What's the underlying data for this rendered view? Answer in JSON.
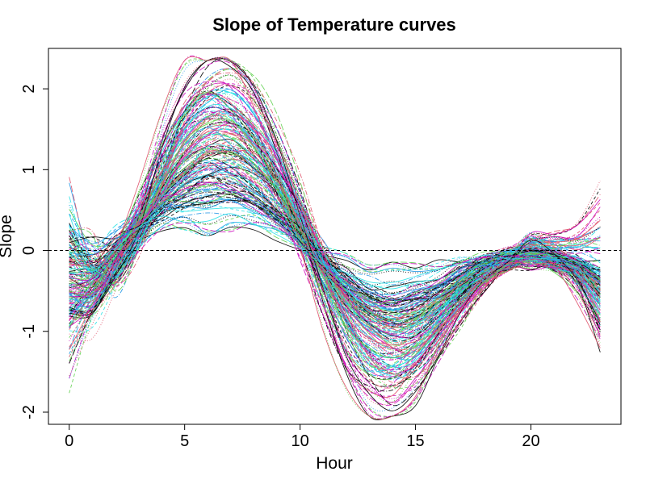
{
  "chart_data": {
    "type": "line",
    "title": "Slope of Temperature curves",
    "xlabel": "Hour",
    "ylabel": "Slope",
    "xlim": [
      -0.9,
      23.9
    ],
    "ylim": [
      -2.15,
      2.5
    ],
    "xticks": [
      0,
      5,
      10,
      15,
      20
    ],
    "xtick_labels": [
      "0",
      "5",
      "10",
      "15",
      "20"
    ],
    "yticks": [
      -2,
      -1,
      0,
      1,
      2
    ],
    "ytick_labels": [
      "-2",
      "-1",
      "0",
      "1",
      "2"
    ],
    "reference_line": {
      "y": 0,
      "style": "dashed",
      "color": "#000000"
    },
    "grid": false,
    "legend": "none",
    "curve_count": 200,
    "palette": [
      "#000000",
      "#DF536B",
      "#61D04F",
      "#2297E6",
      "#28E2E5",
      "#CD0BBC",
      "#F5C710",
      "#9E9E9E"
    ],
    "x": [
      0,
      1,
      2,
      3,
      4,
      5,
      6,
      7,
      8,
      9,
      10,
      11,
      12,
      13,
      14,
      15,
      16,
      17,
      18,
      19,
      20,
      21,
      22,
      23
    ],
    "representative_series": [
      {
        "values": [
          1.1,
          -0.1,
          -0.5,
          0.1,
          0.9,
          1.6,
          1.9,
          2.0,
          1.8,
          1.3,
          0.6,
          -0.2,
          -0.8,
          -1.2,
          -1.4,
          -1.3,
          -1.0,
          -0.6,
          -0.3,
          -0.1,
          -0.1,
          -0.2,
          -0.3,
          -0.8
        ]
      },
      {
        "values": [
          -1.5,
          -0.7,
          -0.3,
          0.3,
          1.3,
          2.0,
          2.3,
          2.2,
          1.8,
          1.2,
          0.4,
          -0.5,
          -1.2,
          -1.7,
          -1.8,
          -1.6,
          -1.1,
          -0.6,
          -0.3,
          -0.1,
          0.2,
          0.0,
          -0.3,
          -0.8
        ]
      },
      {
        "values": [
          0.5,
          0.0,
          0.2,
          0.4,
          0.6,
          0.7,
          0.8,
          0.8,
          0.7,
          0.5,
          0.2,
          -0.2,
          -0.5,
          -0.7,
          -0.8,
          -0.7,
          -0.6,
          -0.4,
          -0.2,
          -0.1,
          0.0,
          -0.1,
          -0.2,
          -0.4
        ]
      },
      {
        "values": [
          -0.3,
          -0.6,
          -0.2,
          0.1,
          0.3,
          0.3,
          0.2,
          0.3,
          0.3,
          0.2,
          0.1,
          0.0,
          -0.1,
          -0.2,
          -0.2,
          -0.2,
          -0.2,
          -0.1,
          -0.1,
          -0.1,
          -0.1,
          -0.1,
          -0.1,
          -0.2
        ]
      },
      {
        "values": [
          -1.0,
          -0.6,
          -0.1,
          0.5,
          1.3,
          1.9,
          2.2,
          2.1,
          1.7,
          1.0,
          0.2,
          -0.7,
          -1.5,
          -1.9,
          -2.0,
          -1.7,
          -1.2,
          -0.7,
          -0.4,
          -0.2,
          -0.2,
          -0.2,
          -0.4,
          -1.2
        ]
      },
      {
        "values": [
          0.2,
          -0.3,
          0.0,
          0.4,
          0.8,
          1.1,
          1.3,
          1.3,
          1.1,
          0.8,
          0.3,
          -0.2,
          -0.6,
          -0.9,
          -1.0,
          -0.9,
          -0.7,
          -0.5,
          -0.3,
          -0.2,
          -0.1,
          -0.2,
          -0.3,
          -0.5
        ]
      },
      {
        "values": [
          -0.8,
          -0.4,
          0.0,
          0.4,
          0.9,
          1.4,
          1.7,
          1.8,
          1.6,
          1.2,
          0.6,
          -0.1,
          -0.7,
          -1.1,
          -1.3,
          -1.3,
          -1.1,
          -0.8,
          -0.4,
          -0.1,
          0.2,
          0.2,
          0.3,
          0.7
        ]
      },
      {
        "values": [
          -1.4,
          -0.8,
          -0.3,
          0.2,
          0.6,
          0.9,
          1.1,
          1.0,
          0.8,
          0.5,
          0.2,
          -0.2,
          -0.5,
          -0.7,
          -0.8,
          -0.7,
          -0.5,
          -0.3,
          -0.1,
          0.0,
          0.0,
          0.0,
          -0.1,
          -0.5
        ]
      }
    ]
  }
}
